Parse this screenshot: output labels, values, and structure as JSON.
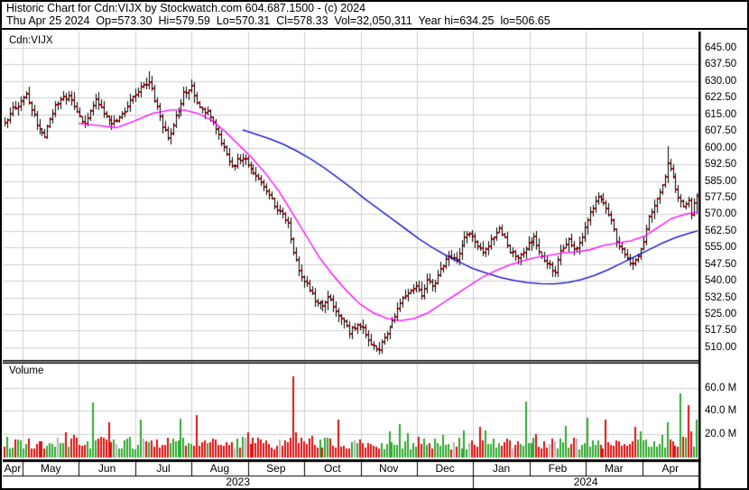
{
  "header": {
    "line1": "Historic Chart for Cdn:VIJX by Stockwatch.com 604.687.1500 - (c) 2024",
    "line2": "Thu Apr 25 2024  Op=573.30  Hi=579.59  Lo=570.31  Cl=578.33  Vol=32,050,311  Year hi=634.25  lo=506.65",
    "quote": {
      "date": "Thu Apr 25 2024",
      "open": "573.30",
      "high": "579.59",
      "low": "570.31",
      "close": "578.33",
      "volume": "32,050,311",
      "year_high": "634.25",
      "year_low": "506.65"
    }
  },
  "chart_data": {
    "type": "ohlc-bar-with-volume",
    "symbol_label": "Cdn:VIJX",
    "volume_pane_label": "Volume",
    "price_axis": {
      "max": 645.0,
      "min": 510.0,
      "step": 7.5,
      "ticks": [
        "645.00",
        "637.50",
        "630.00",
        "622.50",
        "615.00",
        "607.50",
        "600.00",
        "592.50",
        "585.00",
        "577.50",
        "570.00",
        "562.50",
        "555.00",
        "547.50",
        "540.00",
        "532.50",
        "525.00",
        "517.50",
        "510.00"
      ]
    },
    "volume_axis": {
      "ticks": [
        "60.0 M",
        "40.0 M",
        "20.0 M"
      ],
      "tick_values": [
        60,
        40,
        20
      ]
    },
    "x_axis": {
      "months": [
        "Apr",
        "May",
        "Jun",
        "Jul",
        "Aug",
        "Sep",
        "Oct",
        "Nov",
        "Dec",
        "Jan",
        "Feb",
        "Mar",
        "Apr"
      ],
      "years": [
        "2023",
        "2024"
      ],
      "year_split_month_index": 9
    },
    "bars_count": 260,
    "close_anchors": [
      [
        0,
        612
      ],
      [
        3,
        617
      ],
      [
        8,
        624
      ],
      [
        12,
        611
      ],
      [
        15,
        605
      ],
      [
        19,
        619
      ],
      [
        24,
        624
      ],
      [
        27,
        616
      ],
      [
        30,
        611
      ],
      [
        34,
        622
      ],
      [
        37,
        616
      ],
      [
        40,
        610
      ],
      [
        44,
        614
      ],
      [
        47,
        622
      ],
      [
        51,
        627
      ],
      [
        54,
        630
      ],
      [
        56,
        622
      ],
      [
        59,
        610
      ],
      [
        61,
        604
      ],
      [
        64,
        614
      ],
      [
        67,
        624
      ],
      [
        70,
        627
      ],
      [
        73,
        618
      ],
      [
        76,
        616
      ],
      [
        79,
        608
      ],
      [
        82,
        600
      ],
      [
        85,
        592
      ],
      [
        89,
        596
      ],
      [
        92,
        590
      ],
      [
        96,
        585
      ],
      [
        99,
        578
      ],
      [
        102,
        572
      ],
      [
        106,
        566
      ],
      [
        108,
        553
      ],
      [
        110,
        545
      ],
      [
        113,
        538
      ],
      [
        116,
        532
      ],
      [
        119,
        528
      ],
      [
        121,
        533
      ],
      [
        124,
        527
      ],
      [
        127,
        522
      ],
      [
        129,
        517
      ],
      [
        132,
        521
      ],
      [
        135,
        516
      ],
      [
        137,
        512
      ],
      [
        140,
        509
      ],
      [
        143,
        516
      ],
      [
        146,
        524
      ],
      [
        148,
        531
      ],
      [
        151,
        535
      ],
      [
        154,
        538
      ],
      [
        156,
        534
      ],
      [
        158,
        540
      ],
      [
        160,
        537
      ],
      [
        163,
        545
      ],
      [
        166,
        552
      ],
      [
        169,
        549
      ],
      [
        171,
        557
      ],
      [
        174,
        562
      ],
      [
        177,
        556
      ],
      [
        179,
        553
      ],
      [
        182,
        558
      ],
      [
        185,
        563
      ],
      [
        187,
        559
      ],
      [
        189,
        553
      ],
      [
        192,
        550
      ],
      [
        195,
        555
      ],
      [
        198,
        560
      ],
      [
        200,
        553
      ],
      [
        203,
        548
      ],
      [
        206,
        544
      ],
      [
        208,
        553
      ],
      [
        211,
        558
      ],
      [
        214,
        554
      ],
      [
        216,
        560
      ],
      [
        219,
        570
      ],
      [
        222,
        579
      ],
      [
        224,
        575
      ],
      [
        227,
        567
      ],
      [
        229,
        558
      ],
      [
        232,
        551
      ],
      [
        235,
        547
      ],
      [
        237,
        550
      ],
      [
        239,
        558
      ],
      [
        241,
        568
      ],
      [
        244,
        576
      ],
      [
        246,
        583
      ],
      [
        248,
        592
      ],
      [
        250,
        588
      ],
      [
        252,
        577
      ],
      [
        254,
        573
      ],
      [
        256,
        576
      ],
      [
        257,
        571
      ],
      [
        259,
        578.33
      ]
    ],
    "special_bars": {
      "year_high": {
        "index": 54,
        "high": 634.25
      },
      "year_low": {
        "index": 140,
        "low": 506.65
      },
      "april_peak": {
        "index": 248,
        "high": 600.5
      },
      "last": {
        "open": 573.3,
        "high": 579.59,
        "low": 570.31,
        "close": 578.33,
        "volume_m": 32.05
      }
    },
    "ma_fast": {
      "name": "moving-average-fast",
      "color": "#ff00ff",
      "anchors": [
        [
          84,
          611
        ],
        [
          106,
          610
        ],
        [
          126,
          609
        ],
        [
          146,
          612
        ],
        [
          166,
          615.5
        ],
        [
          186,
          617
        ],
        [
          201,
          617
        ],
        [
          216,
          615.5
        ],
        [
          231,
          612.5
        ],
        [
          246,
          607.5
        ],
        [
          261,
          601.5
        ],
        [
          276,
          595.5
        ],
        [
          291,
          588.5
        ],
        [
          306,
          580.5
        ],
        [
          321,
          570.5
        ],
        [
          336,
          560.5
        ],
        [
          351,
          550.5
        ],
        [
          366,
          542.5
        ],
        [
          381,
          535.5
        ],
        [
          396,
          529.5
        ],
        [
          411,
          525.5
        ],
        [
          426,
          523
        ],
        [
          441,
          522
        ],
        [
          456,
          523
        ],
        [
          471,
          525.5
        ],
        [
          486,
          529.5
        ],
        [
          501,
          533.5
        ],
        [
          516,
          537.5
        ],
        [
          531,
          541.5
        ],
        [
          546,
          544.5
        ],
        [
          561,
          547
        ],
        [
          576,
          549
        ],
        [
          591,
          550.5
        ],
        [
          606,
          551.5
        ],
        [
          621,
          552.5
        ],
        [
          636,
          553
        ],
        [
          651,
          554
        ],
        [
          666,
          556
        ],
        [
          681,
          557
        ],
        [
          696,
          558
        ],
        [
          711,
          560
        ],
        [
          726,
          564
        ],
        [
          741,
          568
        ],
        [
          756,
          570
        ],
        [
          770,
          571
        ]
      ]
    },
    "ma_slow": {
      "name": "moving-average-slow",
      "color": "#0000cc",
      "anchors": [
        [
          266,
          608
        ],
        [
          281,
          606
        ],
        [
          296,
          604
        ],
        [
          311,
          601.5
        ],
        [
          326,
          598.5
        ],
        [
          341,
          595
        ],
        [
          356,
          591
        ],
        [
          371,
          586.5
        ],
        [
          386,
          582
        ],
        [
          401,
          577
        ],
        [
          416,
          572.5
        ],
        [
          431,
          568
        ],
        [
          446,
          563.5
        ],
        [
          461,
          559
        ],
        [
          476,
          555
        ],
        [
          491,
          551.5
        ],
        [
          506,
          548.5
        ],
        [
          521,
          545.5
        ],
        [
          536,
          543.5
        ],
        [
          551,
          541.5
        ],
        [
          566,
          540.2
        ],
        [
          581,
          539.2
        ],
        [
          596,
          538.7
        ],
        [
          611,
          538.6
        ],
        [
          626,
          539.2
        ],
        [
          641,
          540.5
        ],
        [
          656,
          542.5
        ],
        [
          671,
          545
        ],
        [
          686,
          548
        ],
        [
          701,
          551
        ],
        [
          716,
          554
        ],
        [
          731,
          557
        ],
        [
          746,
          559.5
        ],
        [
          761,
          561.5
        ],
        [
          770,
          562.5
        ]
      ]
    },
    "volume_data": {
      "unit": "M",
      "base_range": [
        6,
        17
      ],
      "spikes": [
        [
          33,
          47,
          "g"
        ],
        [
          39,
          30,
          "r"
        ],
        [
          51,
          32,
          "g"
        ],
        [
          66,
          33,
          "g"
        ],
        [
          72,
          36,
          "r"
        ],
        [
          108,
          70,
          "r"
        ],
        [
          125,
          32,
          "r"
        ],
        [
          148,
          28,
          "g"
        ],
        [
          178,
          26,
          "r"
        ],
        [
          195,
          48,
          "g"
        ],
        [
          210,
          27,
          "g"
        ],
        [
          218,
          34,
          "g"
        ],
        [
          225,
          32,
          "r"
        ],
        [
          236,
          26,
          "r"
        ],
        [
          248,
          30,
          "g"
        ],
        [
          253,
          55,
          "g"
        ],
        [
          256,
          45,
          "r"
        ],
        [
          259,
          32,
          "g"
        ]
      ]
    },
    "colors": {
      "bar": "#000000",
      "close_tick": "#e60000",
      "vol_up": "#2faa2f",
      "vol_down": "#dd1111",
      "vol_neutral": "#b3b3b3",
      "grid": "#d0d0d0",
      "border": "#000000",
      "background": "#ffffff"
    }
  }
}
